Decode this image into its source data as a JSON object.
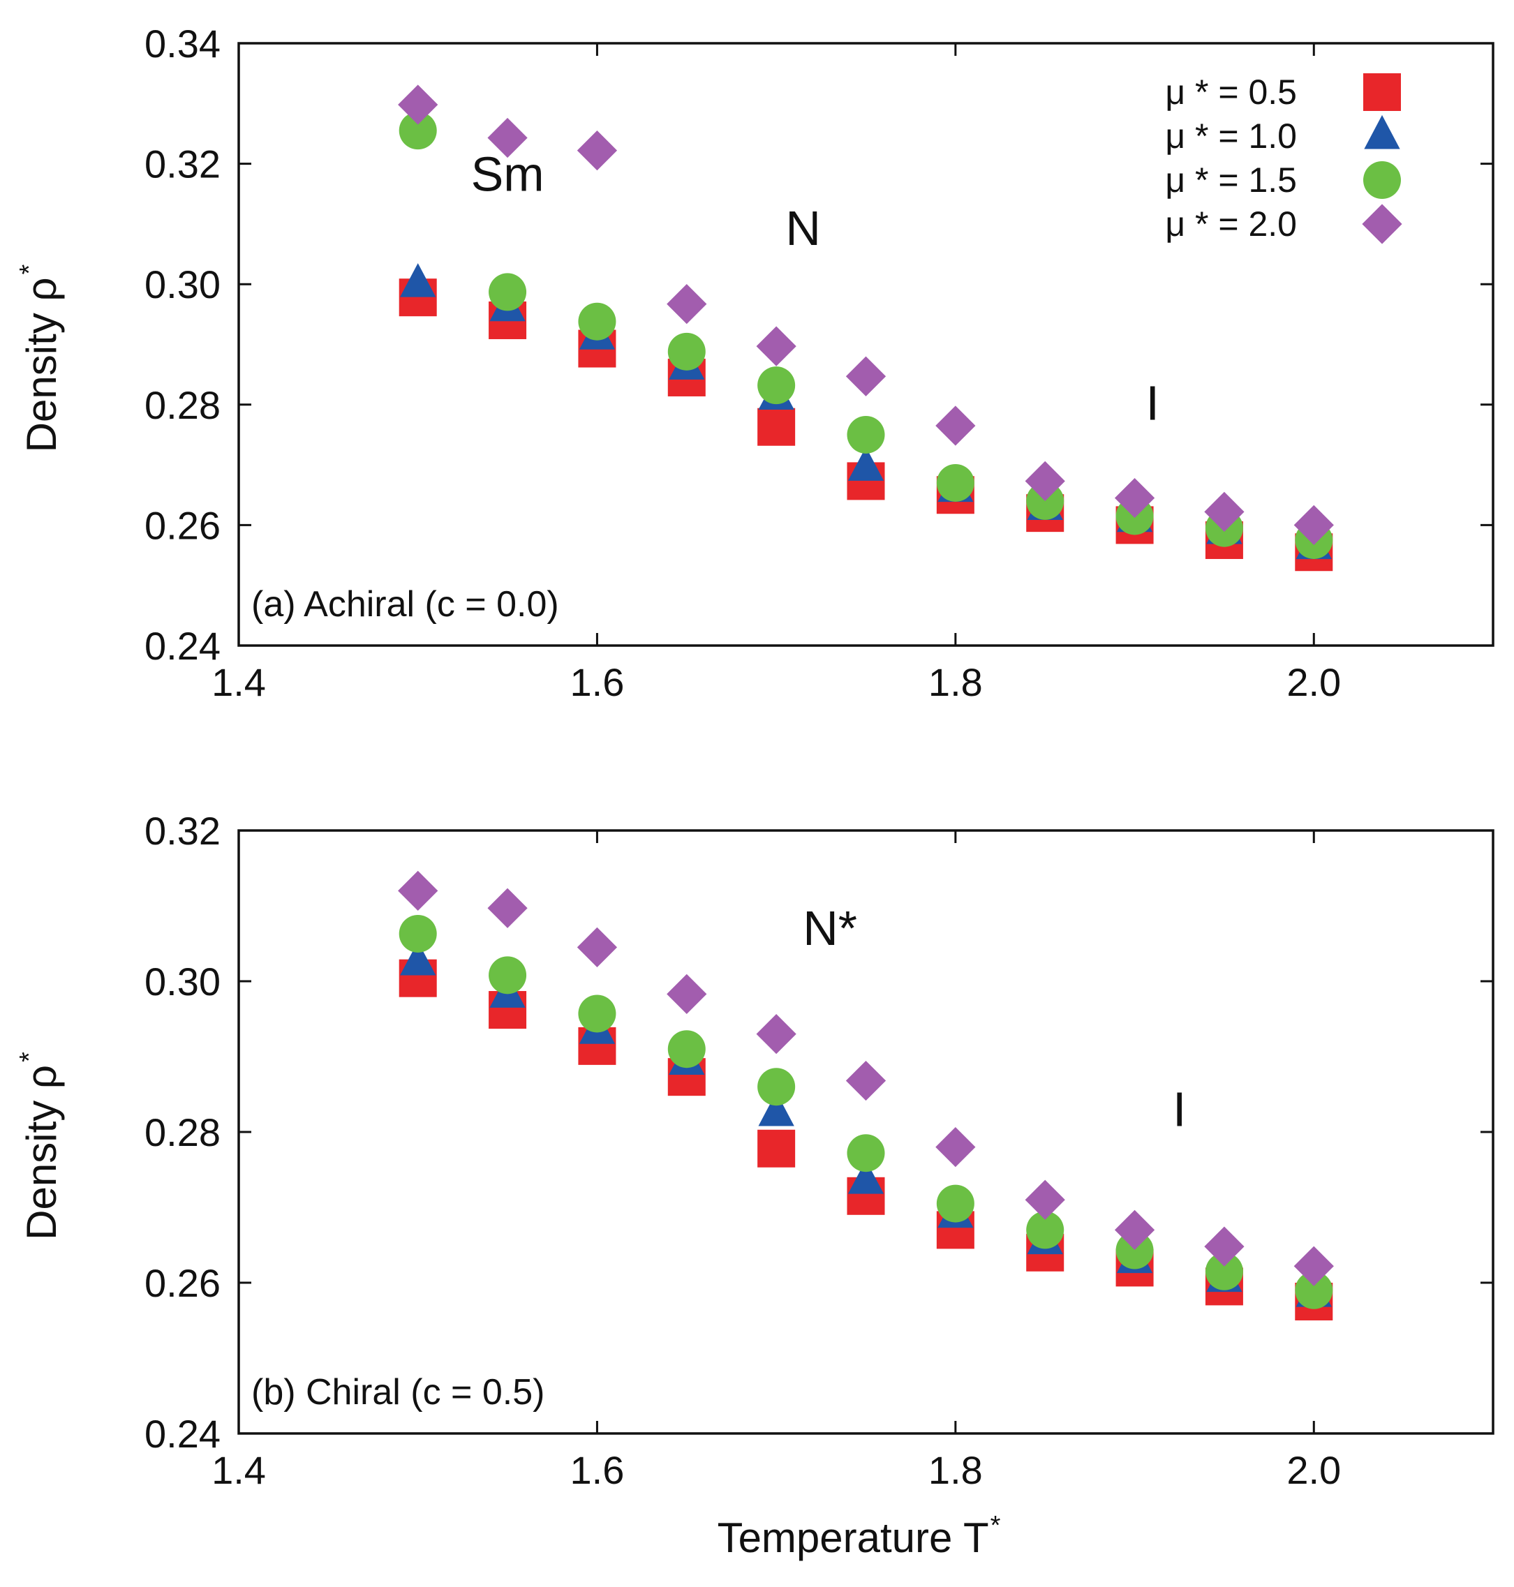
{
  "chart_data": [
    {
      "type": "scatter",
      "panel_label": "(a) Achiral (c = 0.0)",
      "xlabel": "Temperature T",
      "xlabel_sup": "*",
      "ylabel": "Density ρ",
      "ylabel_sup": "*",
      "xlim": [
        1.4,
        2.1
      ],
      "ylim": [
        0.24,
        0.34
      ],
      "xticks": [
        "1.4",
        "1.6",
        "1.8",
        "2.0"
      ],
      "yticks": [
        "0.24",
        "0.26",
        "0.28",
        "0.30",
        "0.32",
        "0.34"
      ],
      "grid": false,
      "legend_position": "top-right",
      "phase_labels": [
        {
          "text": "Sm",
          "x": 1.55,
          "y": 0.3155
        },
        {
          "text": "N",
          "x": 1.715,
          "y": 0.3065
        },
        {
          "text": "I",
          "x": 1.91,
          "y": 0.2775
        }
      ],
      "x": [
        1.5,
        1.55,
        1.6,
        1.65,
        1.7,
        1.75,
        1.8,
        1.85,
        1.9,
        1.95,
        2.0
      ],
      "series": [
        {
          "name": "μ * = 0.5",
          "marker": "square",
          "color": "#e8262a",
          "values": [
            0.2978,
            0.294,
            0.2893,
            0.2845,
            0.2763,
            0.2673,
            0.265,
            0.262,
            0.26,
            0.2575,
            0.2555
          ]
        },
        {
          "name": "μ * = 1.0",
          "marker": "triangle",
          "color": "#1f56a8",
          "values": [
            0.3,
            0.296,
            0.2913,
            0.2863,
            0.2813,
            0.2695,
            0.266,
            0.263,
            0.261,
            0.259,
            0.2565
          ]
        },
        {
          "name": "μ * = 1.5",
          "marker": "circle",
          "color": "#6bbf44",
          "values": [
            0.3255,
            0.2987,
            0.2938,
            0.2888,
            0.2832,
            0.275,
            0.267,
            0.264,
            0.2615,
            0.2595,
            0.2575
          ]
        },
        {
          "name": "μ * = 2.0",
          "marker": "diamond",
          "color": "#a25dae",
          "values": [
            0.3298,
            0.3243,
            0.3222,
            0.2967,
            0.2897,
            0.2847,
            0.2765,
            0.2673,
            0.2645,
            0.2622,
            0.26
          ]
        }
      ]
    },
    {
      "type": "scatter",
      "panel_label": "(b) Chiral (c = 0.5)",
      "xlabel": "Temperature T",
      "xlabel_sup": "*",
      "ylabel": "Density ρ",
      "ylabel_sup": "*",
      "xlim": [
        1.4,
        2.1
      ],
      "ylim": [
        0.24,
        0.32
      ],
      "xticks": [
        "1.4",
        "1.6",
        "1.8",
        "2.0"
      ],
      "yticks": [
        "0.24",
        "0.26",
        "0.28",
        "0.30",
        "0.32"
      ],
      "grid": false,
      "phase_labels": [
        {
          "text": "N*",
          "x": 1.73,
          "y": 0.3048
        },
        {
          "text": "I",
          "x": 1.925,
          "y": 0.2808
        }
      ],
      "x": [
        1.5,
        1.55,
        1.6,
        1.65,
        1.7,
        1.75,
        1.8,
        1.85,
        1.9,
        1.95,
        2.0
      ],
      "series": [
        {
          "name": "μ * = 0.5",
          "marker": "square",
          "color": "#e8262a",
          "values": [
            0.3004,
            0.2962,
            0.2914,
            0.2873,
            0.2778,
            0.2715,
            0.267,
            0.264,
            0.262,
            0.2595,
            0.2575
          ]
        },
        {
          "name": "μ * = 1.0",
          "marker": "triangle",
          "color": "#1f56a8",
          "values": [
            0.3025,
            0.2982,
            0.2934,
            0.2893,
            0.2825,
            0.2735,
            0.269,
            0.2655,
            0.263,
            0.2605,
            0.2585
          ]
        },
        {
          "name": "μ * = 1.5",
          "marker": "circle",
          "color": "#6bbf44",
          "values": [
            0.3063,
            0.3008,
            0.2957,
            0.291,
            0.286,
            0.2772,
            0.2705,
            0.267,
            0.2643,
            0.2615,
            0.259
          ]
        },
        {
          "name": "μ * = 2.0",
          "marker": "diamond",
          "color": "#a25dae",
          "values": [
            0.312,
            0.3097,
            0.3045,
            0.2983,
            0.293,
            0.2868,
            0.278,
            0.271,
            0.267,
            0.2648,
            0.2622
          ]
        }
      ]
    }
  ]
}
